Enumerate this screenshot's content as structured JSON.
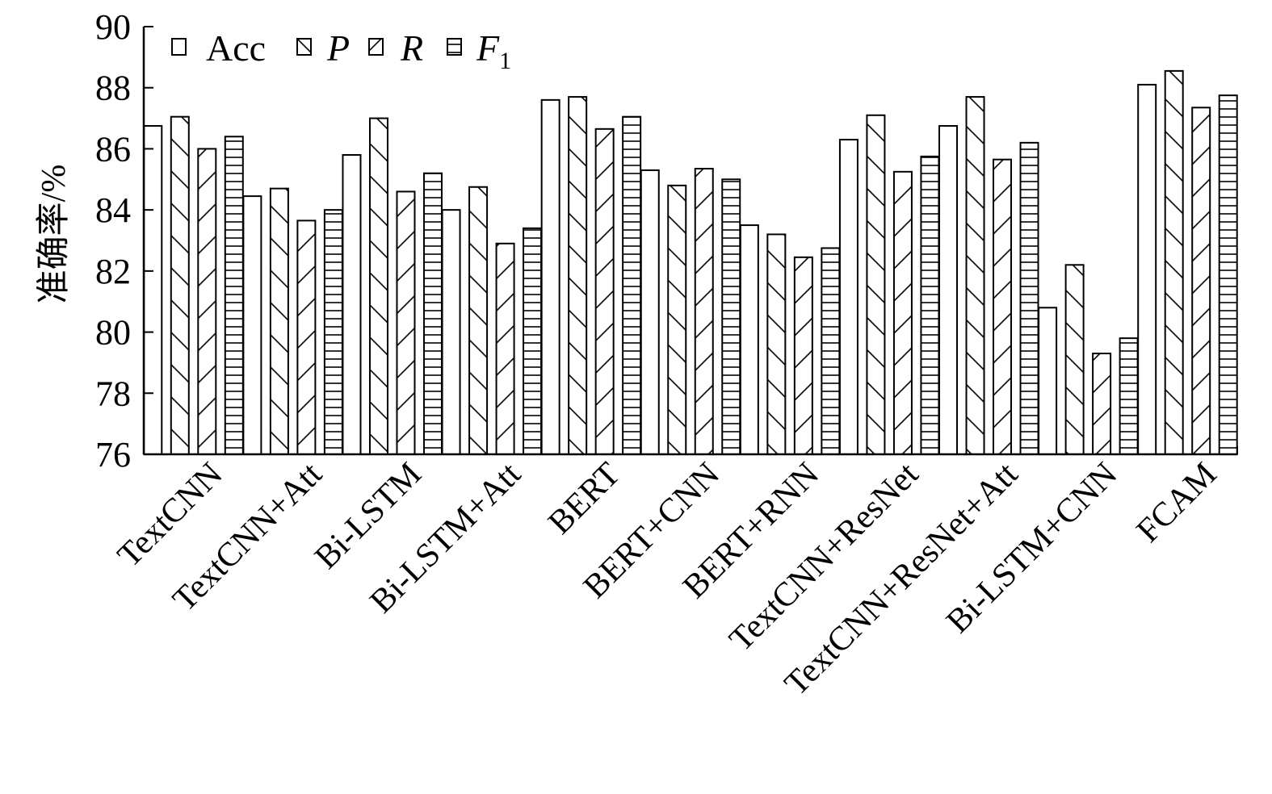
{
  "chart_data": {
    "type": "bar",
    "ylabel": "准确率/%",
    "ylim": [
      76,
      90
    ],
    "yticks": [
      76,
      78,
      80,
      82,
      84,
      86,
      88,
      90
    ],
    "grid": false,
    "legend_position": "top-left",
    "categories": [
      "TextCNN",
      "TextCNN+Att",
      "Bi-LSTM",
      "Bi-LSTM+Att",
      "BERT",
      "BERT+CNN",
      "BERT+RNN",
      "TextCNN+ResNet",
      "TextCNN+ResNet+Att",
      "Bi-LSTM+CNN",
      "FCAM"
    ],
    "series": [
      {
        "name": "Acc",
        "pattern": "blank",
        "values": [
          86.75,
          84.45,
          85.8,
          84.0,
          87.6,
          85.3,
          83.5,
          86.3,
          86.75,
          80.8,
          88.1
        ]
      },
      {
        "name": "P",
        "pattern": "backslash",
        "values": [
          87.05,
          84.7,
          87.0,
          84.75,
          87.7,
          84.8,
          83.2,
          87.1,
          87.7,
          82.2,
          88.55
        ]
      },
      {
        "name": "R",
        "pattern": "slash",
        "values": [
          86.0,
          83.65,
          84.6,
          82.9,
          86.65,
          85.35,
          82.45,
          85.25,
          85.65,
          79.3,
          87.35
        ]
      },
      {
        "name": "F",
        "subscript": "1",
        "pattern": "horizontal",
        "values": [
          86.4,
          84.0,
          85.2,
          83.4,
          87.05,
          85.0,
          82.75,
          85.75,
          86.2,
          79.8,
          87.75
        ]
      }
    ]
  }
}
